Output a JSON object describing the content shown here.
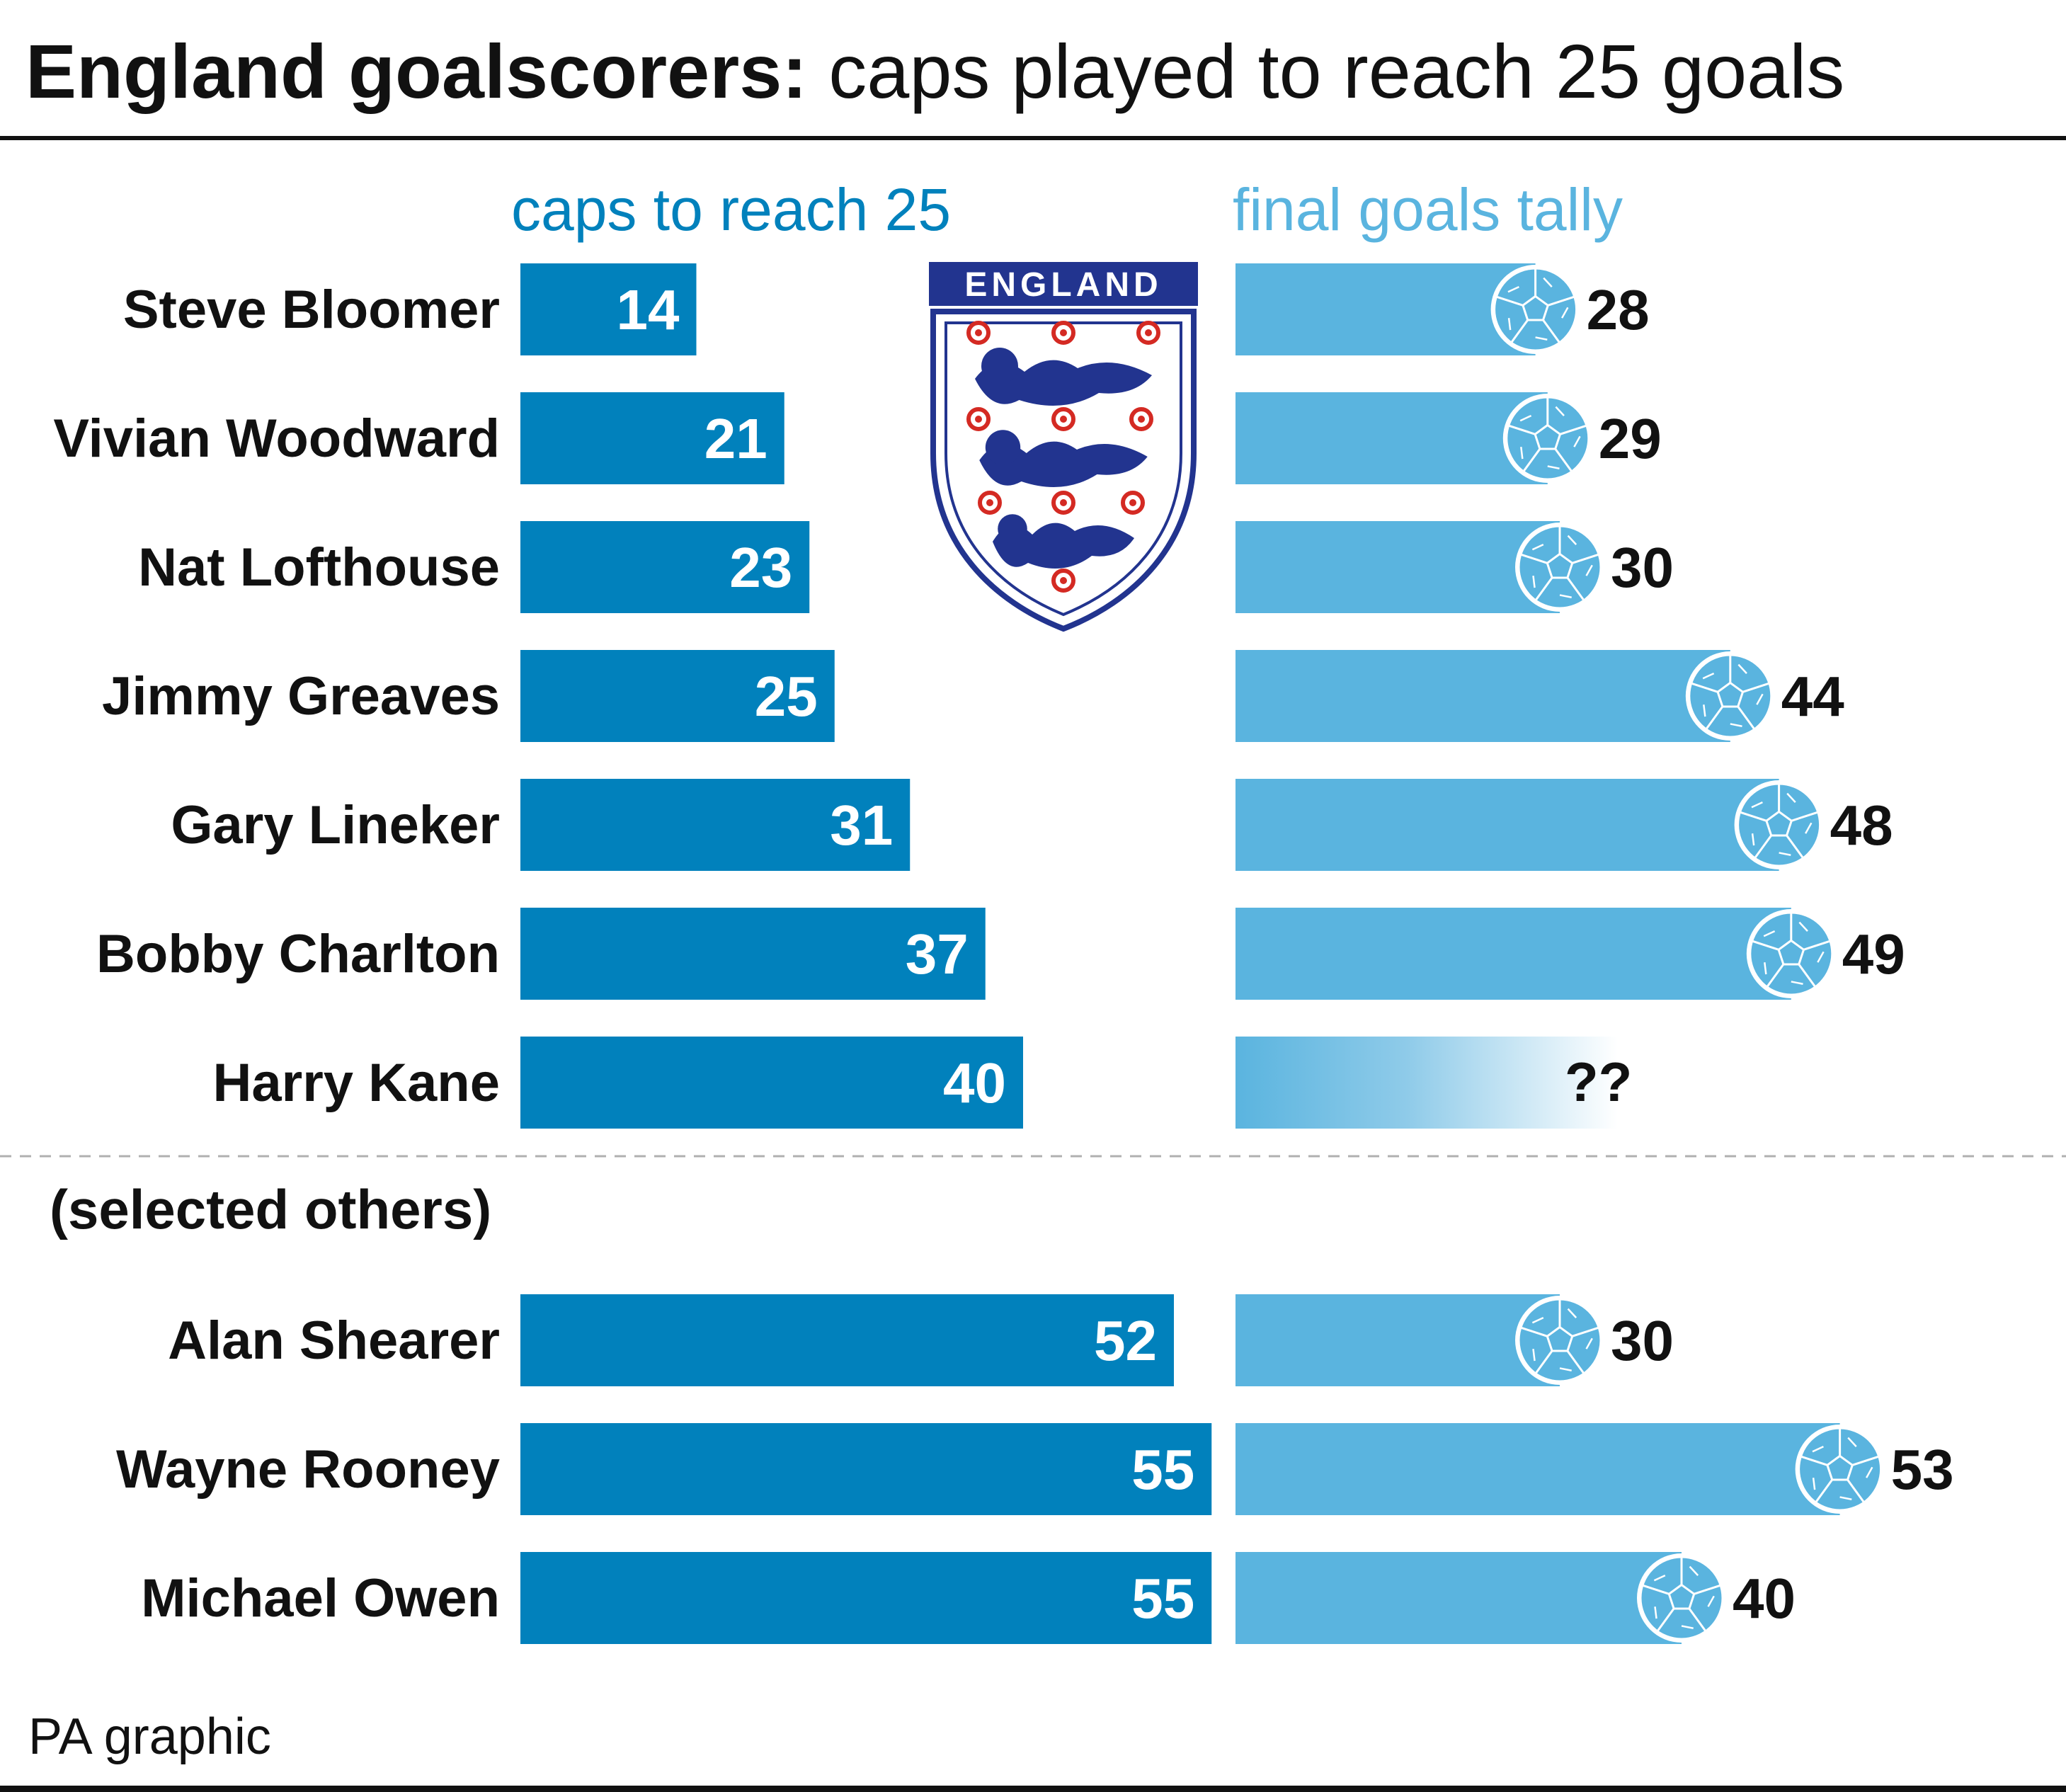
{
  "chart_data": {
    "type": "bar",
    "title": "England goalscorers:",
    "subtitle": "caps played to reach 25 goals",
    "left_header": "caps to reach 25",
    "right_header": "final goals tally",
    "group_label": "(selected others)",
    "badge_text": "ENGLAND",
    "source": "PA graphic",
    "colors": {
      "caps_bar": "#0181bc",
      "goals_bar": "#5ab4df",
      "left_header": "#0181bc",
      "right_header": "#5ab4df",
      "badge_blue": "#22348f",
      "badge_red": "#d42a23"
    },
    "main_players": [
      {
        "name": "Steve Bloomer",
        "caps": 14,
        "caps_label": "14",
        "goals": 28,
        "goals_label": "28"
      },
      {
        "name": "Vivian Woodward",
        "caps": 21,
        "caps_label": "21",
        "goals": 29,
        "goals_label": "29"
      },
      {
        "name": "Nat Lofthouse",
        "caps": 23,
        "caps_label": "23",
        "goals": 30,
        "goals_label": "30"
      },
      {
        "name": "Jimmy Greaves",
        "caps": 25,
        "caps_label": "25",
        "goals": 44,
        "goals_label": "44"
      },
      {
        "name": "Gary Lineker",
        "caps": 31,
        "caps_label": "31",
        "goals": 48,
        "goals_label": "48"
      },
      {
        "name": "Bobby Charlton",
        "caps": 37,
        "caps_label": "37",
        "goals": 49,
        "goals_label": "49"
      },
      {
        "name": "Harry Kane",
        "caps": 40,
        "caps_label": "40",
        "goals": null,
        "goals_label": "??"
      }
    ],
    "other_players": [
      {
        "name": "Alan Shearer",
        "caps": 52,
        "caps_label": "52",
        "goals": 30,
        "goals_label": "30"
      },
      {
        "name": "Wayne Rooney",
        "caps": 55,
        "caps_label": "55",
        "goals": 53,
        "goals_label": "53"
      },
      {
        "name": "Michael Owen",
        "caps": 55,
        "caps_label": "55",
        "goals": 40,
        "goals_label": "40"
      }
    ]
  }
}
